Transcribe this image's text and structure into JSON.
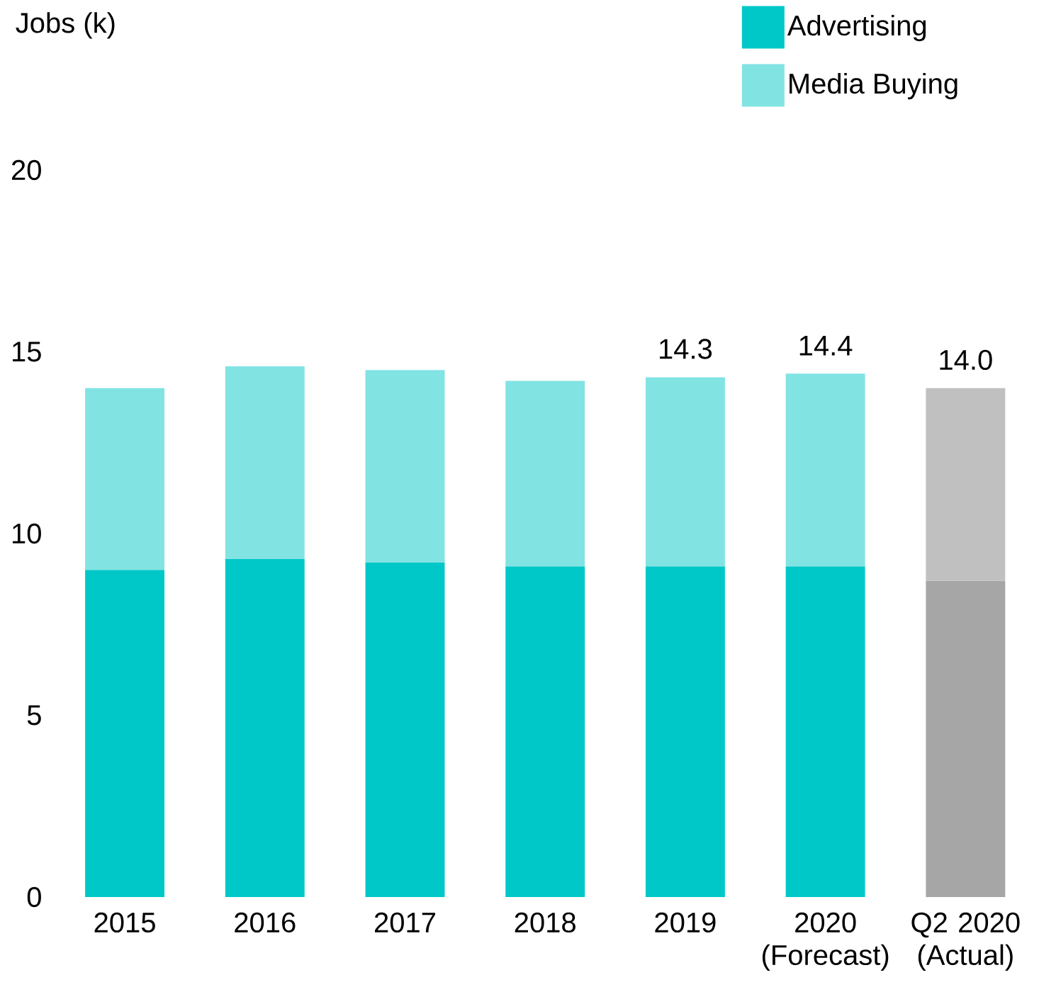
{
  "chart_data": {
    "type": "bar",
    "stacked": true,
    "ylabel": "Jobs (k)",
    "categories": [
      "2015",
      "2016",
      "2017",
      "2018",
      "2019",
      "2020 (Forecast)",
      "Q2 2020 (Actual)"
    ],
    "series": [
      {
        "name": "Advertising",
        "color": "#00c8c8",
        "colors": [
          "#00c8c8",
          "#00c8c8",
          "#00c8c8",
          "#00c8c8",
          "#00c8c8",
          "#00c8c8",
          "#a6a6a6"
        ],
        "values": [
          9.0,
          9.3,
          9.2,
          9.1,
          9.1,
          9.1,
          8.7
        ]
      },
      {
        "name": "Media Buying",
        "color": "#82e3e3",
        "colors": [
          "#82e3e3",
          "#82e3e3",
          "#82e3e3",
          "#82e3e3",
          "#82e3e3",
          "#82e3e3",
          "#c0c0c0"
        ],
        "values": [
          5.0,
          5.3,
          5.3,
          5.1,
          5.2,
          5.3,
          5.3
        ]
      }
    ],
    "totals": [
      null,
      null,
      null,
      null,
      "14.3",
      "14.4",
      "14.0"
    ],
    "ylim": [
      0,
      20
    ],
    "yticks": [
      0,
      5,
      10,
      15,
      20
    ],
    "legend": "top right"
  }
}
